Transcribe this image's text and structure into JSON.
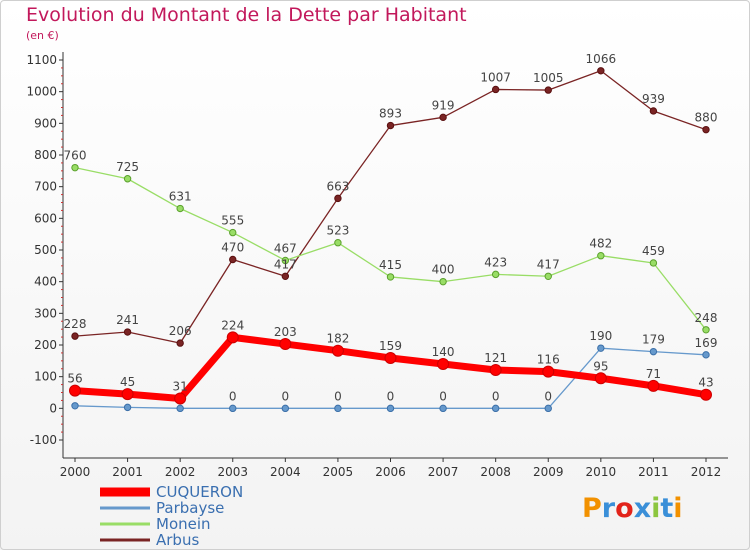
{
  "header": {
    "title": "Evolution du Montant de la Dette par Habitant",
    "subtitle": "(en €)"
  },
  "logo": {
    "text": "Proxiti"
  },
  "colors": {
    "title": "#c2185b",
    "axis": "#333333"
  },
  "chart_data": {
    "type": "line",
    "title": "Evolution du Montant de la Dette par Habitant",
    "subtitle": "(en €)",
    "xlabel": "",
    "ylabel": "",
    "categories": [
      "2000",
      "2001",
      "2002",
      "2003",
      "2004",
      "2005",
      "2006",
      "2007",
      "2008",
      "2009",
      "2010",
      "2011",
      "2012"
    ],
    "ylim": [
      -100,
      1100
    ],
    "yticks": [
      -100,
      0,
      100,
      200,
      300,
      400,
      500,
      600,
      700,
      800,
      900,
      1000,
      1100
    ],
    "grid": false,
    "legend_position": "bottom-left",
    "series": [
      {
        "name": "CUQUERON",
        "color": "#ff0000",
        "values": [
          56,
          45,
          31,
          224,
          203,
          182,
          159,
          140,
          121,
          116,
          95,
          71,
          43
        ]
      },
      {
        "name": "Parbayse",
        "color": "#6699cc",
        "values": [
          8,
          3,
          0,
          0,
          0,
          0,
          0,
          0,
          0,
          0,
          190,
          179,
          169
        ]
      },
      {
        "name": "Monein",
        "color": "#99dd66",
        "values": [
          760,
          725,
          631,
          555,
          467,
          523,
          415,
          400,
          423,
          417,
          482,
          459,
          248
        ]
      },
      {
        "name": "Arbus",
        "color": "#7a2424",
        "values": [
          228,
          241,
          206,
          470,
          417,
          663,
          893,
          919,
          1007,
          1005,
          1066,
          939,
          880
        ]
      }
    ],
    "data_labels": {
      "CUQUERON": [
        "56",
        "45",
        "31",
        "224",
        "203",
        "182",
        "159",
        "140",
        "121",
        "116",
        "95",
        "71",
        "43"
      ],
      "Parbayse": [
        "",
        "",
        "",
        "0",
        "0",
        "0",
        "0",
        "0",
        "0",
        "0",
        "190",
        "179",
        "169"
      ],
      "Monein": [
        "760",
        "725",
        "631",
        "555",
        "467",
        "523",
        "415",
        "400",
        "423",
        "417",
        "482",
        "459",
        "248"
      ],
      "Arbus": [
        "228",
        "241",
        "206",
        "470",
        "417",
        "663",
        "893",
        "919",
        "1007",
        "1005",
        "1066",
        "939",
        "880"
      ]
    }
  }
}
